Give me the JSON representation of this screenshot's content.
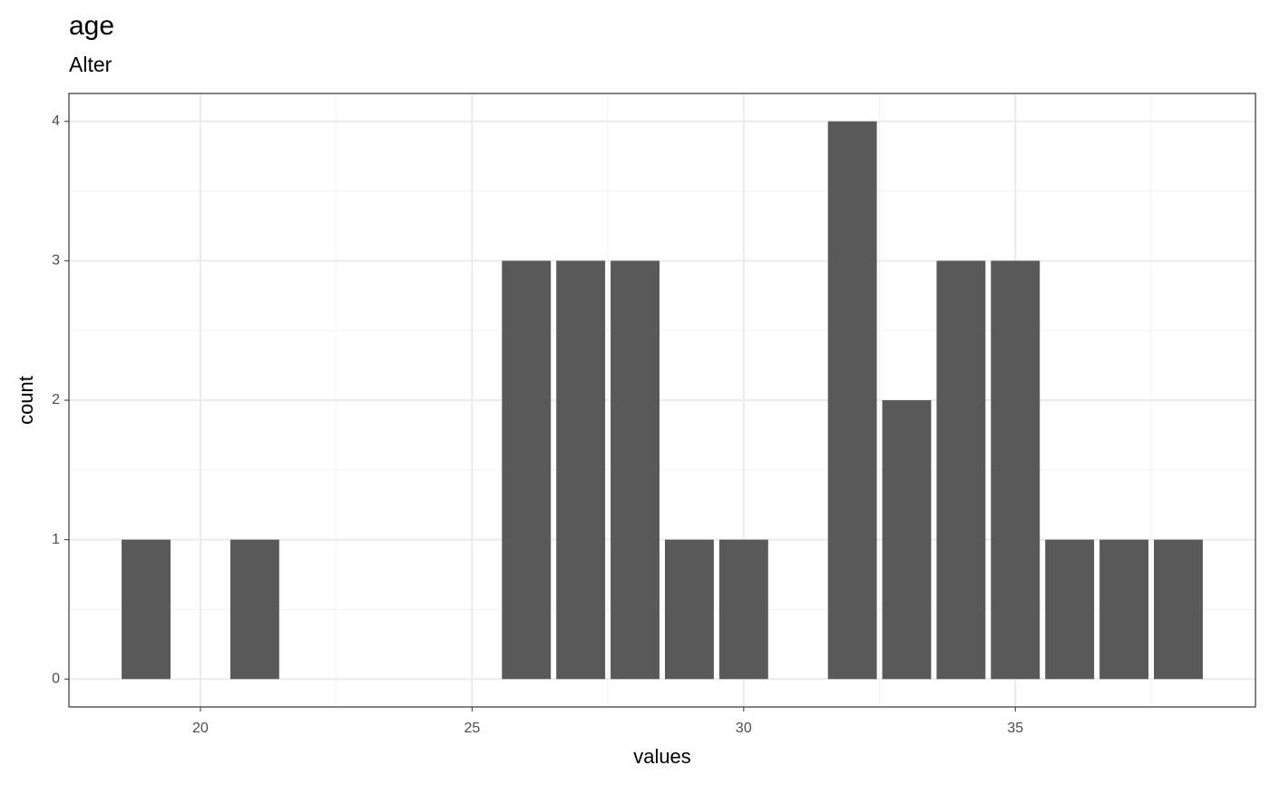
{
  "chart_data": {
    "type": "bar",
    "title": "age",
    "subtitle": "Alter",
    "x_label": "values",
    "y_label": "count",
    "x": [
      19,
      21,
      26,
      27,
      28,
      29,
      30,
      32,
      33,
      34,
      35,
      36,
      37,
      38
    ],
    "values": [
      1,
      1,
      3,
      3,
      3,
      1,
      1,
      4,
      2,
      3,
      3,
      1,
      1,
      1
    ],
    "color": "#595959",
    "xlim": [
      17.58,
      39.42
    ],
    "xticks": [
      20,
      25,
      30,
      35
    ],
    "ylim": [
      -0.2,
      4.2
    ],
    "yticks": [
      0,
      1,
      2,
      3,
      4
    ],
    "grid": true
  }
}
